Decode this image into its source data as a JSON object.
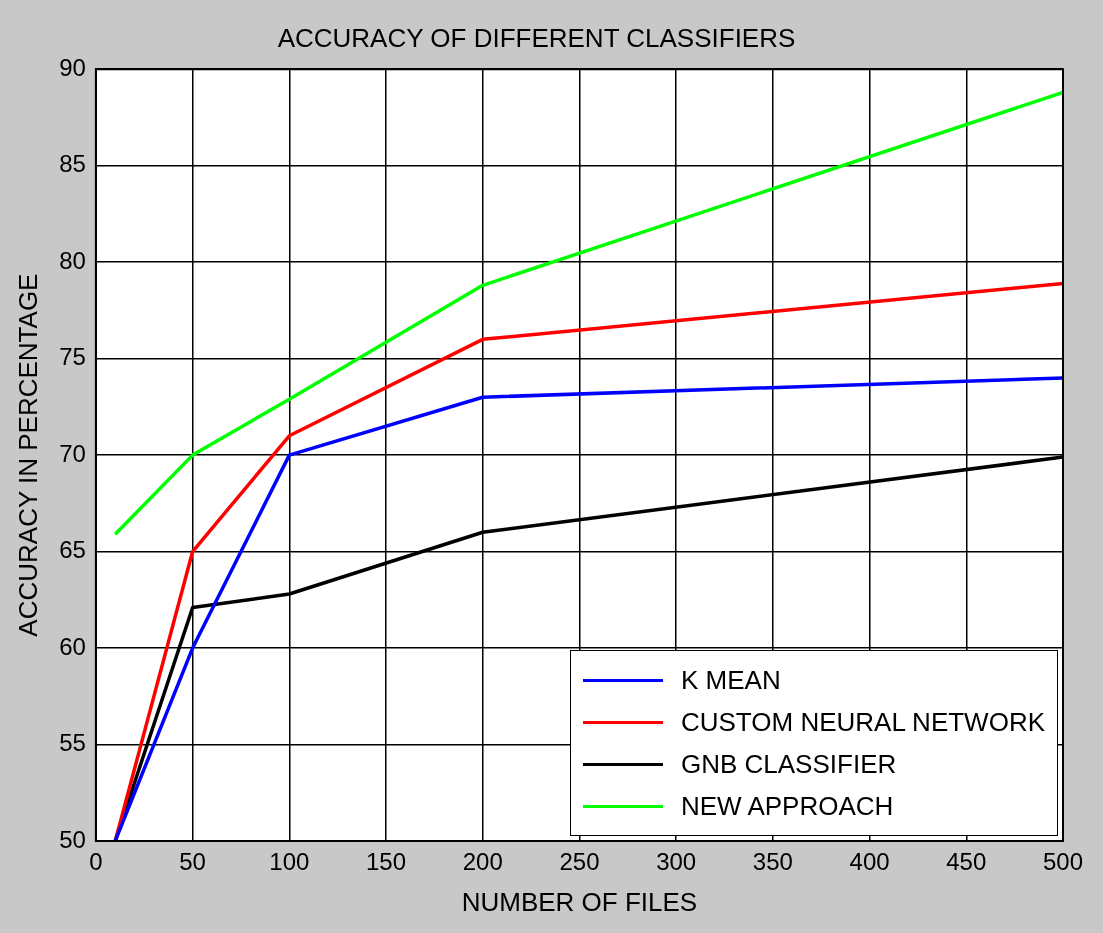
{
  "chart_data": {
    "type": "line",
    "title": "ACCURACY OF DIFFERENT CLASSIFIERS",
    "xlabel": "NUMBER OF FILES",
    "ylabel": "ACCURACY IN PERCENTAGE",
    "x": [
      10,
      50,
      100,
      200,
      500
    ],
    "series": [
      {
        "name": "K MEAN",
        "color": "#0000ff",
        "values": [
          50,
          60,
          70,
          73,
          74
        ]
      },
      {
        "name": "CUSTOM NEURAL NETWORK",
        "color": "#ff0000",
        "values": [
          50,
          65,
          71,
          76,
          78.9
        ]
      },
      {
        "name": "GNB CLASSIFIER",
        "color": "#000000",
        "values": [
          50,
          62.1,
          62.8,
          66,
          69.9
        ]
      },
      {
        "name": "NEW APPROACH",
        "color": "#00ff00",
        "values": [
          65.9,
          70,
          72.9,
          78.8,
          88.8
        ]
      }
    ],
    "xlim": [
      0,
      500
    ],
    "xticks": [
      0,
      50,
      100,
      150,
      200,
      250,
      300,
      350,
      400,
      450,
      500
    ],
    "ylim": [
      50,
      90
    ],
    "yticks": [
      50,
      55,
      60,
      65,
      70,
      75,
      80,
      85,
      90
    ],
    "grid": true,
    "legend": "bottom right",
    "marker": "none",
    "line_style": "solid"
  }
}
